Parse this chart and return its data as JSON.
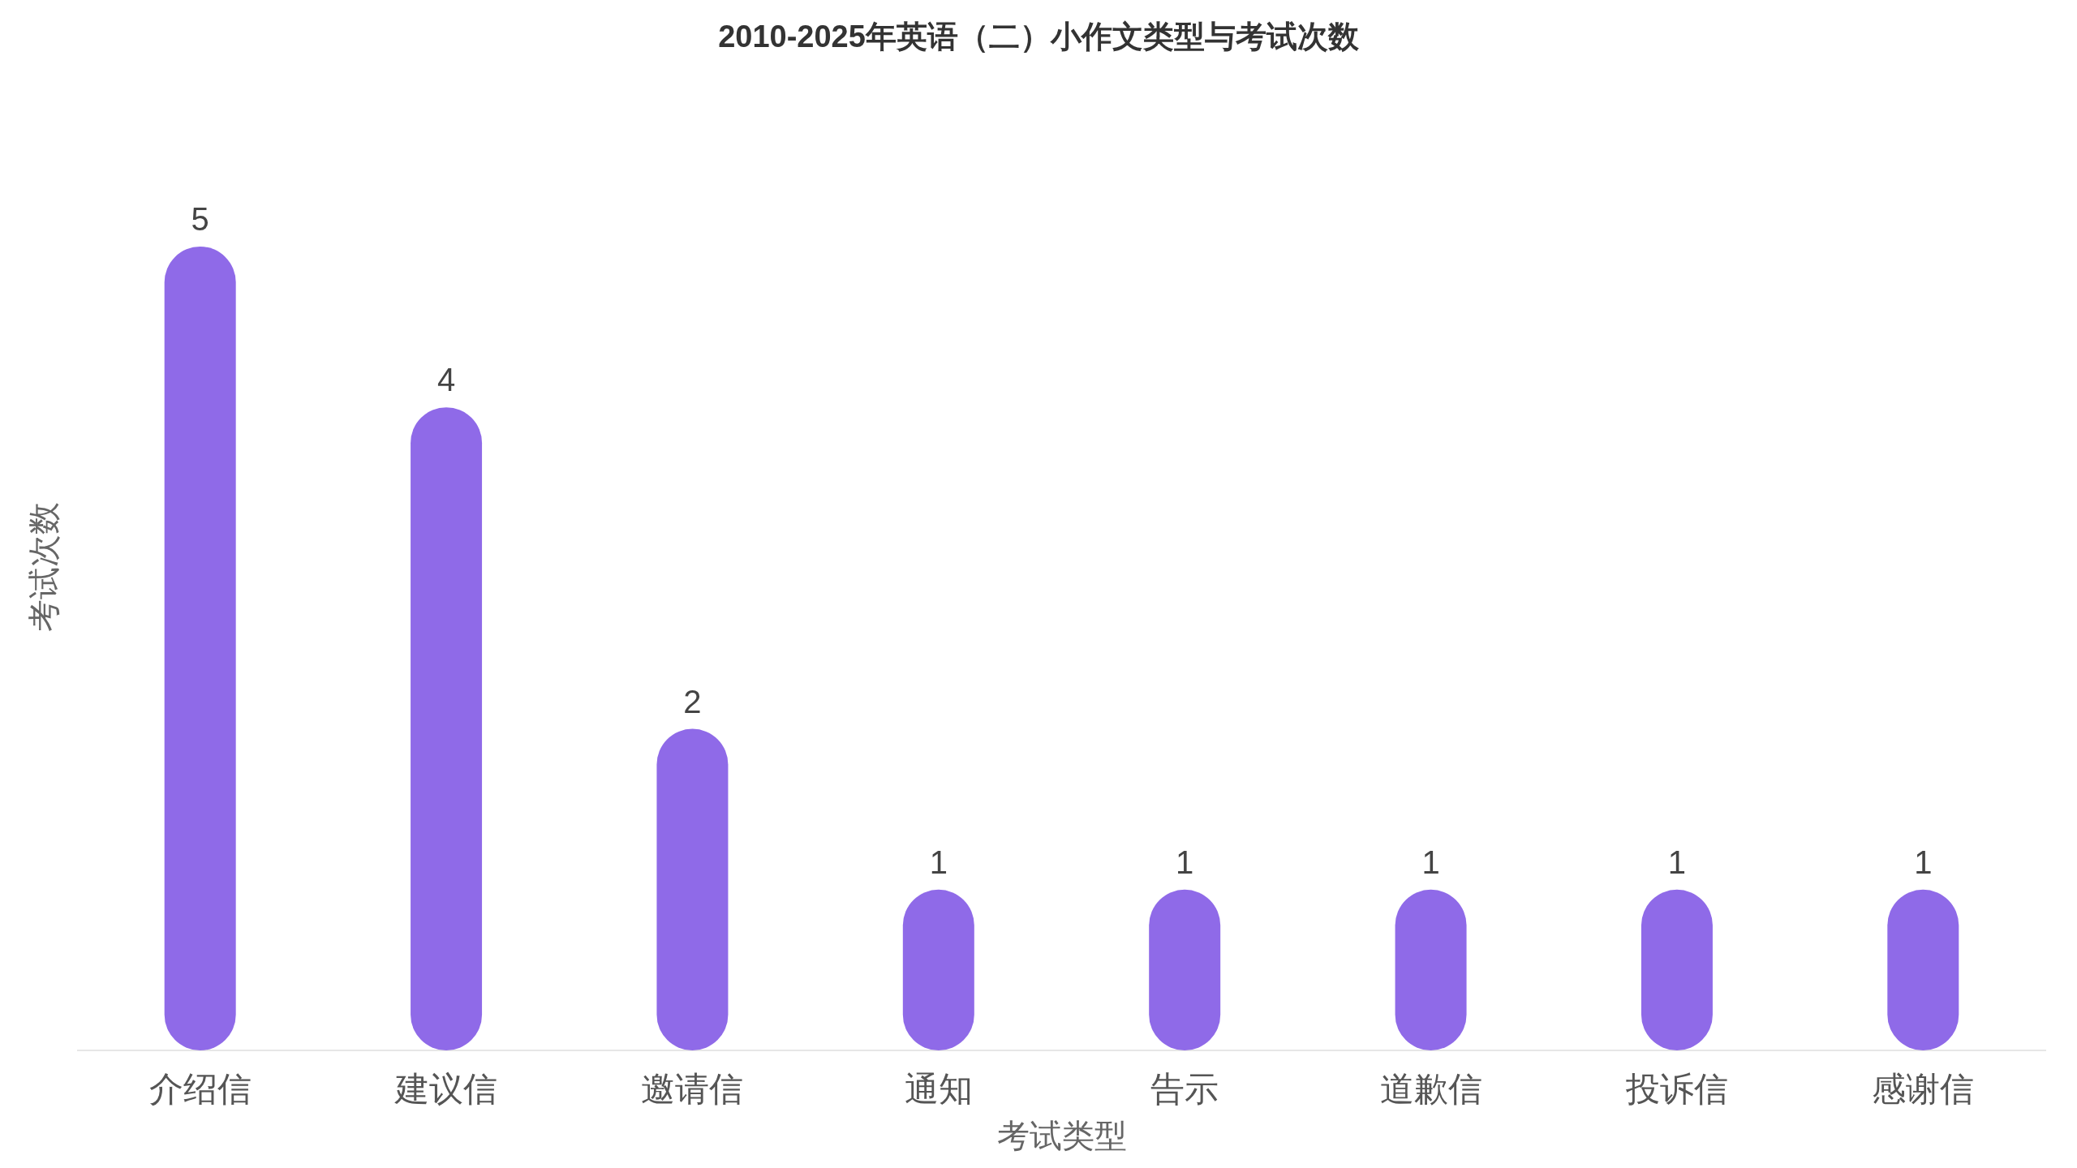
{
  "chart_data": {
    "type": "bar",
    "title": "2010-2025年英语（二）小作文类型与考试次数",
    "xlabel": "考试类型",
    "ylabel": "考试次数",
    "categories": [
      "介绍信",
      "建议信",
      "邀请信",
      "通知",
      "告示",
      "道歉信",
      "投诉信",
      "感谢信"
    ],
    "values": [
      5,
      4,
      2,
      1,
      1,
      1,
      1,
      1
    ],
    "color": "#8f6ae8",
    "data_labels": true
  }
}
